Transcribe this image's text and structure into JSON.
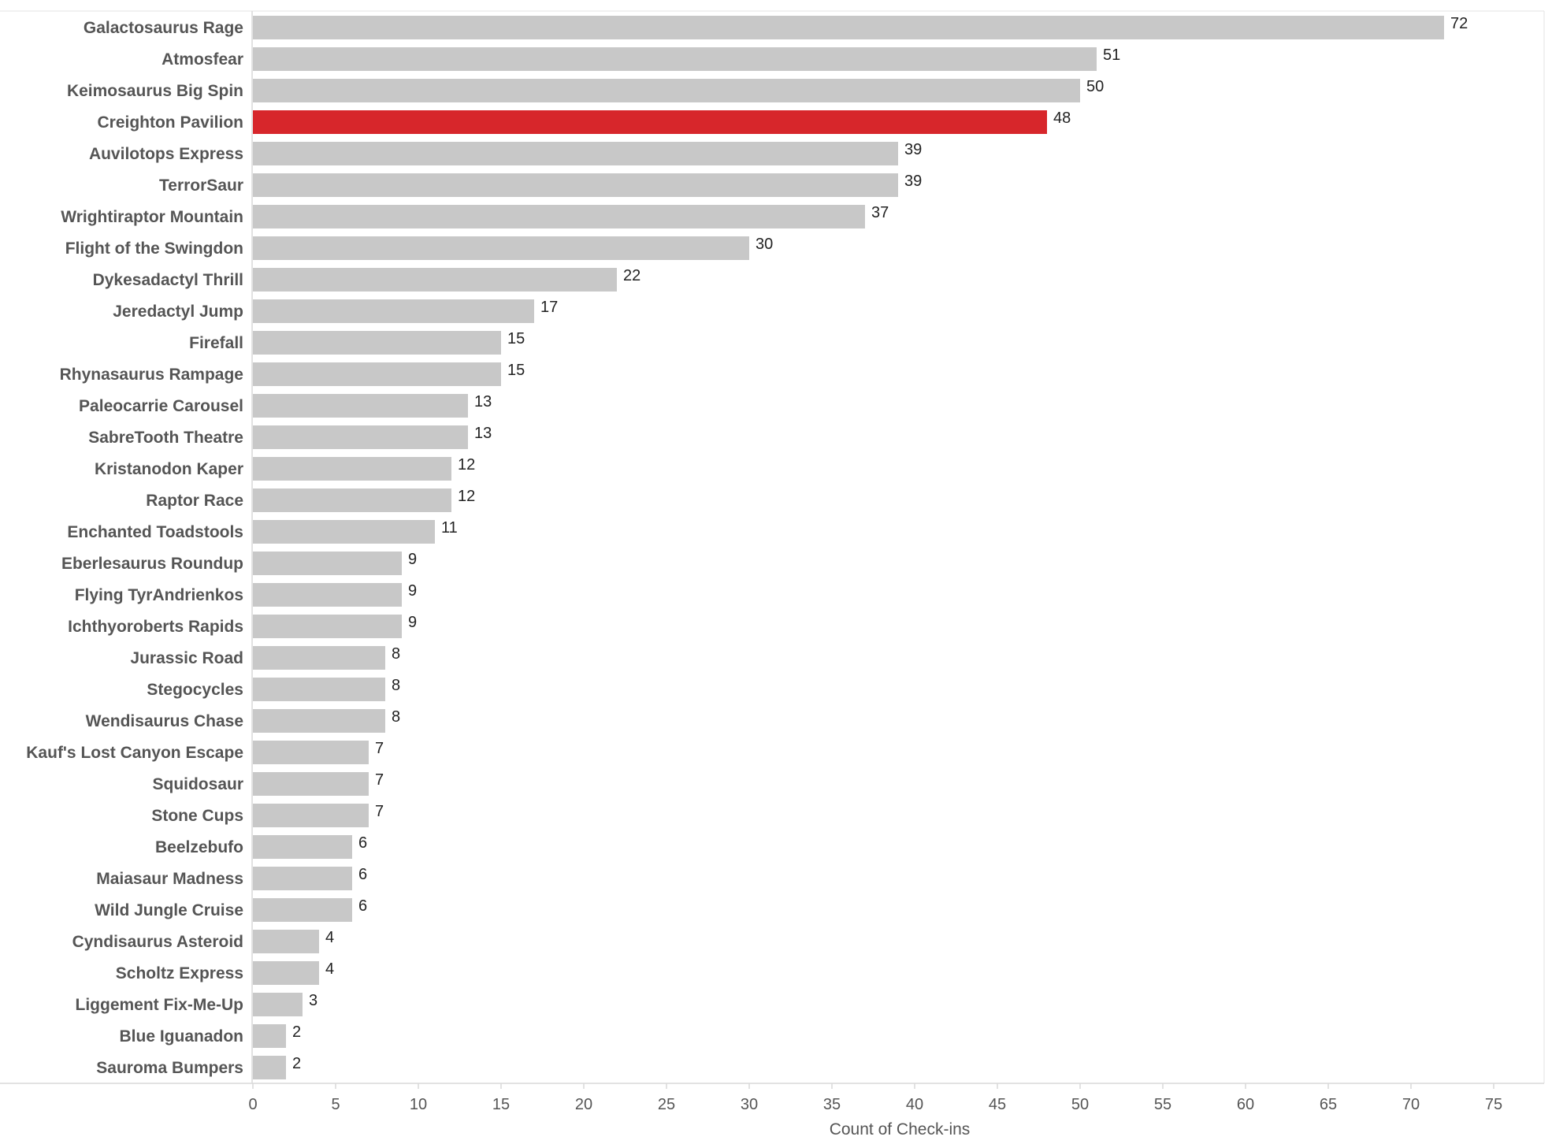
{
  "chart_data": {
    "type": "bar",
    "orientation": "horizontal",
    "categories": [
      "Galactosaurus Rage",
      "Atmosfear",
      "Keimosaurus Big Spin",
      "Creighton Pavilion",
      "Auvilotops Express",
      "TerrorSaur",
      "Wrightiraptor Mountain",
      "Flight of the Swingdon",
      "Dykesadactyl Thrill",
      "Jeredactyl Jump",
      "Firefall",
      "Rhynasaurus Rampage",
      "Paleocarrie Carousel",
      "SabreTooth Theatre",
      "Kristanodon Kaper",
      "Raptor Race",
      "Enchanted Toadstools",
      "Eberlesaurus Roundup",
      "Flying TyrAndrienkos",
      "Ichthyoroberts Rapids",
      "Jurassic Road",
      "Stegocycles",
      "Wendisaurus Chase",
      "Kauf's Lost Canyon Escape",
      "Squidosaur",
      "Stone Cups",
      "Beelzebufo",
      "Maiasaur Madness",
      "Wild Jungle Cruise",
      "Cyndisaurus Asteroid",
      "Scholtz Express",
      "Liggement Fix-Me-Up",
      "Blue Iguanadon",
      "Sauroma Bumpers"
    ],
    "values": [
      72,
      51,
      50,
      48,
      39,
      39,
      37,
      30,
      22,
      17,
      15,
      15,
      13,
      13,
      12,
      12,
      11,
      9,
      9,
      9,
      8,
      8,
      8,
      7,
      7,
      7,
      6,
      6,
      6,
      4,
      4,
      3,
      2,
      2
    ],
    "highlight_index": 3,
    "xlabel": "Count of Check-ins",
    "ylabel": "",
    "xlim": [
      0,
      75
    ],
    "xticks": [
      0,
      5,
      10,
      15,
      20,
      25,
      30,
      35,
      40,
      45,
      50,
      55,
      60,
      65,
      70,
      75
    ],
    "grid": false,
    "colors": {
      "bar": "#c8c8c8",
      "highlight": "#d7262b",
      "category_text": "#555555",
      "value_text": "#222222",
      "axis_line": "#d9d9d9"
    }
  }
}
